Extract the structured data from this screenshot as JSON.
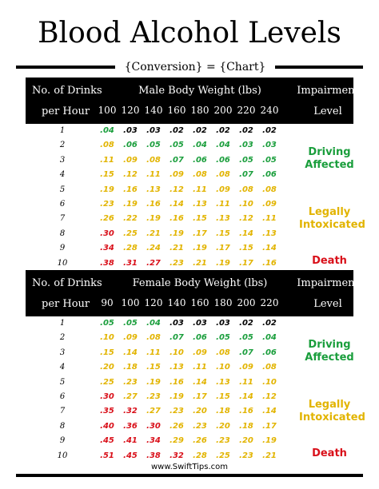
{
  "title": "Blood Alcohol Levels",
  "subtitle": "{Conversion} = {Chart}",
  "colors": {
    "green": "#1a9e3c",
    "black": "#000000",
    "yellow": "#e2b400",
    "red": "#d9101a"
  },
  "sections": [
    {
      "header": {
        "drinks_line1": "No. of Drinks",
        "drinks_line2": "per Hour",
        "weight_label": "Male Body Weight (lbs)",
        "impair_line1": "Impairment",
        "impair_line2": "Level"
      },
      "weights": [
        "100",
        "120",
        "140",
        "160",
        "180",
        "200",
        "220",
        "240"
      ],
      "rows": [
        {
          "drinks": "1",
          "values": [
            ".04",
            ".03",
            ".03",
            ".02",
            ".02",
            ".02",
            ".02",
            ".02"
          ],
          "colors": [
            "green",
            "black",
            "black",
            "black",
            "black",
            "black",
            "black",
            "black"
          ]
        },
        {
          "drinks": "2",
          "values": [
            ".08",
            ".06",
            ".05",
            ".05",
            ".04",
            ".04",
            ".03",
            ".03"
          ],
          "colors": [
            "yellow",
            "green",
            "green",
            "green",
            "green",
            "green",
            "green",
            "green"
          ]
        },
        {
          "drinks": "3",
          "values": [
            ".11",
            ".09",
            ".08",
            ".07",
            ".06",
            ".06",
            ".05",
            ".05"
          ],
          "colors": [
            "yellow",
            "yellow",
            "yellow",
            "green",
            "green",
            "green",
            "green",
            "green"
          ]
        },
        {
          "drinks": "4",
          "values": [
            ".15",
            ".12",
            ".11",
            ".09",
            ".08",
            ".08",
            ".07",
            ".06"
          ],
          "colors": [
            "yellow",
            "yellow",
            "yellow",
            "yellow",
            "yellow",
            "yellow",
            "green",
            "green"
          ]
        },
        {
          "drinks": "5",
          "values": [
            ".19",
            ".16",
            ".13",
            ".12",
            ".11",
            ".09",
            ".08",
            ".08"
          ],
          "colors": [
            "yellow",
            "yellow",
            "yellow",
            "yellow",
            "yellow",
            "yellow",
            "yellow",
            "yellow"
          ]
        },
        {
          "drinks": "6",
          "values": [
            ".23",
            ".19",
            ".16",
            ".14",
            ".13",
            ".11",
            ".10",
            ".09"
          ],
          "colors": [
            "yellow",
            "yellow",
            "yellow",
            "yellow",
            "yellow",
            "yellow",
            "yellow",
            "yellow"
          ]
        },
        {
          "drinks": "7",
          "values": [
            ".26",
            ".22",
            ".19",
            ".16",
            ".15",
            ".13",
            ".12",
            ".11"
          ],
          "colors": [
            "yellow",
            "yellow",
            "yellow",
            "yellow",
            "yellow",
            "yellow",
            "yellow",
            "yellow"
          ]
        },
        {
          "drinks": "8",
          "values": [
            ".30",
            ".25",
            ".21",
            ".19",
            ".17",
            ".15",
            ".14",
            ".13"
          ],
          "colors": [
            "red",
            "yellow",
            "yellow",
            "yellow",
            "yellow",
            "yellow",
            "yellow",
            "yellow"
          ]
        },
        {
          "drinks": "9",
          "values": [
            ".34",
            ".28",
            ".24",
            ".21",
            ".19",
            ".17",
            ".15",
            ".14"
          ],
          "colors": [
            "red",
            "yellow",
            "yellow",
            "yellow",
            "yellow",
            "yellow",
            "yellow",
            "yellow"
          ]
        },
        {
          "drinks": "10",
          "values": [
            ".38",
            ".31",
            ".27",
            ".23",
            ".21",
            ".19",
            ".17",
            ".16"
          ],
          "colors": [
            "red",
            "red",
            "red",
            "yellow",
            "yellow",
            "yellow",
            "yellow",
            "yellow"
          ]
        }
      ],
      "impairment": [
        {
          "line1": "Driving",
          "line2": "Affected",
          "color": "green"
        },
        {
          "line1": "Legally",
          "line2": "Intoxicated",
          "color": "yellow"
        },
        {
          "line1": "Death",
          "line2": "",
          "color": "red"
        }
      ]
    },
    {
      "header": {
        "drinks_line1": "No. of Drinks",
        "drinks_line2": "per Hour",
        "weight_label": "Female Body Weight (lbs)",
        "impair_line1": "Impairment",
        "impair_line2": "Level"
      },
      "weights": [
        "90",
        "100",
        "120",
        "140",
        "160",
        "180",
        "200",
        "220"
      ],
      "rows": [
        {
          "drinks": "1",
          "values": [
            ".05",
            ".05",
            ".04",
            ".03",
            ".03",
            ".03",
            ".02",
            ".02"
          ],
          "colors": [
            "green",
            "green",
            "green",
            "black",
            "black",
            "black",
            "black",
            "black"
          ]
        },
        {
          "drinks": "2",
          "values": [
            ".10",
            ".09",
            ".08",
            ".07",
            ".06",
            ".05",
            ".05",
            ".04"
          ],
          "colors": [
            "yellow",
            "yellow",
            "yellow",
            "green",
            "green",
            "green",
            "green",
            "green"
          ]
        },
        {
          "drinks": "3",
          "values": [
            ".15",
            ".14",
            ".11",
            ".10",
            ".09",
            ".08",
            ".07",
            ".06"
          ],
          "colors": [
            "yellow",
            "yellow",
            "yellow",
            "yellow",
            "yellow",
            "yellow",
            "green",
            "green"
          ]
        },
        {
          "drinks": "4",
          "values": [
            ".20",
            ".18",
            ".15",
            ".13",
            ".11",
            ".10",
            ".09",
            ".08"
          ],
          "colors": [
            "yellow",
            "yellow",
            "yellow",
            "yellow",
            "yellow",
            "yellow",
            "yellow",
            "yellow"
          ]
        },
        {
          "drinks": "5",
          "values": [
            ".25",
            ".23",
            ".19",
            ".16",
            ".14",
            ".13",
            ".11",
            ".10"
          ],
          "colors": [
            "yellow",
            "yellow",
            "yellow",
            "yellow",
            "yellow",
            "yellow",
            "yellow",
            "yellow"
          ]
        },
        {
          "drinks": "6",
          "values": [
            ".30",
            ".27",
            ".23",
            ".19",
            ".17",
            ".15",
            ".14",
            ".12"
          ],
          "colors": [
            "red",
            "yellow",
            "yellow",
            "yellow",
            "yellow",
            "yellow",
            "yellow",
            "yellow"
          ]
        },
        {
          "drinks": "7",
          "values": [
            ".35",
            ".32",
            ".27",
            ".23",
            ".20",
            ".18",
            ".16",
            ".14"
          ],
          "colors": [
            "red",
            "red",
            "yellow",
            "yellow",
            "yellow",
            "yellow",
            "yellow",
            "yellow"
          ]
        },
        {
          "drinks": "8",
          "values": [
            ".40",
            ".36",
            ".30",
            ".26",
            ".23",
            ".20",
            ".18",
            ".17"
          ],
          "colors": [
            "red",
            "red",
            "red",
            "yellow",
            "yellow",
            "yellow",
            "yellow",
            "yellow"
          ]
        },
        {
          "drinks": "9",
          "values": [
            ".45",
            ".41",
            ".34",
            ".29",
            ".26",
            ".23",
            ".20",
            ".19"
          ],
          "colors": [
            "red",
            "red",
            "red",
            "yellow",
            "yellow",
            "yellow",
            "yellow",
            "yellow"
          ]
        },
        {
          "drinks": "10",
          "values": [
            ".51",
            ".45",
            ".38",
            ".32",
            ".28",
            ".25",
            ".23",
            ".21"
          ],
          "colors": [
            "red",
            "red",
            "red",
            "red",
            "yellow",
            "yellow",
            "yellow",
            "yellow"
          ]
        }
      ],
      "impairment": [
        {
          "line1": "Driving",
          "line2": "Affected",
          "color": "green"
        },
        {
          "line1": "Legally",
          "line2": "Intoxicated",
          "color": "yellow"
        },
        {
          "line1": "Death",
          "line2": "",
          "color": "red"
        }
      ]
    }
  ],
  "footer": "www.SwiftTips.com"
}
